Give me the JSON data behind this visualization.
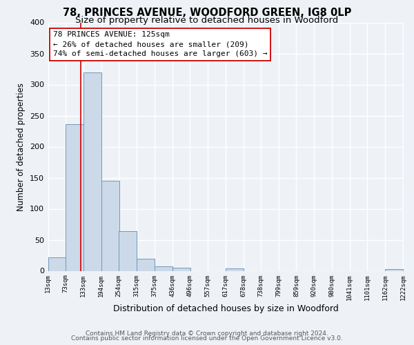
{
  "title1": "78, PRINCES AVENUE, WOODFORD GREEN, IG8 0LP",
  "title2": "Size of property relative to detached houses in Woodford",
  "xlabel": "Distribution of detached houses by size in Woodford",
  "ylabel": "Number of detached properties",
  "bar_left_edges": [
    13,
    73,
    133,
    194,
    254,
    315,
    375,
    436,
    496,
    557,
    617,
    678,
    738,
    799,
    859,
    920,
    980,
    1041,
    1101,
    1162
  ],
  "bar_heights": [
    22,
    236,
    320,
    145,
    64,
    20,
    7,
    5,
    0,
    0,
    4,
    0,
    0,
    0,
    0,
    0,
    0,
    0,
    0,
    3
  ],
  "bin_width": 61,
  "bar_color": "#ccd9e8",
  "bar_edge_color": "#7099b8",
  "tick_labels": [
    "13sqm",
    "73sqm",
    "133sqm",
    "194sqm",
    "254sqm",
    "315sqm",
    "375sqm",
    "436sqm",
    "496sqm",
    "557sqm",
    "617sqm",
    "678sqm",
    "738sqm",
    "799sqm",
    "859sqm",
    "920sqm",
    "980sqm",
    "1041sqm",
    "1101sqm",
    "1162sqm",
    "1222sqm"
  ],
  "ylim": [
    0,
    400
  ],
  "yticks": [
    0,
    50,
    100,
    150,
    200,
    250,
    300,
    350,
    400
  ],
  "property_value": 125,
  "red_line_color": "#cc0000",
  "annotation_title": "78 PRINCES AVENUE: 125sqm",
  "annotation_line1": "← 26% of detached houses are smaller (209)",
  "annotation_line2": "74% of semi-detached houses are larger (603) →",
  "annotation_box_facecolor": "#ffffff",
  "annotation_box_edgecolor": "#cc0000",
  "footer1": "Contains HM Land Registry data © Crown copyright and database right 2024.",
  "footer2": "Contains public sector information licensed under the Open Government Licence v3.0.",
  "background_color": "#eef2f7",
  "plot_bg_color": "#eef2f7",
  "grid_color": "#ffffff",
  "title1_fontsize": 10.5,
  "title2_fontsize": 9.5,
  "xlabel_fontsize": 9,
  "ylabel_fontsize": 8.5,
  "footer_fontsize": 6.5,
  "annotation_fontsize": 8,
  "tick_fontsize": 6.5,
  "ytick_fontsize": 8
}
